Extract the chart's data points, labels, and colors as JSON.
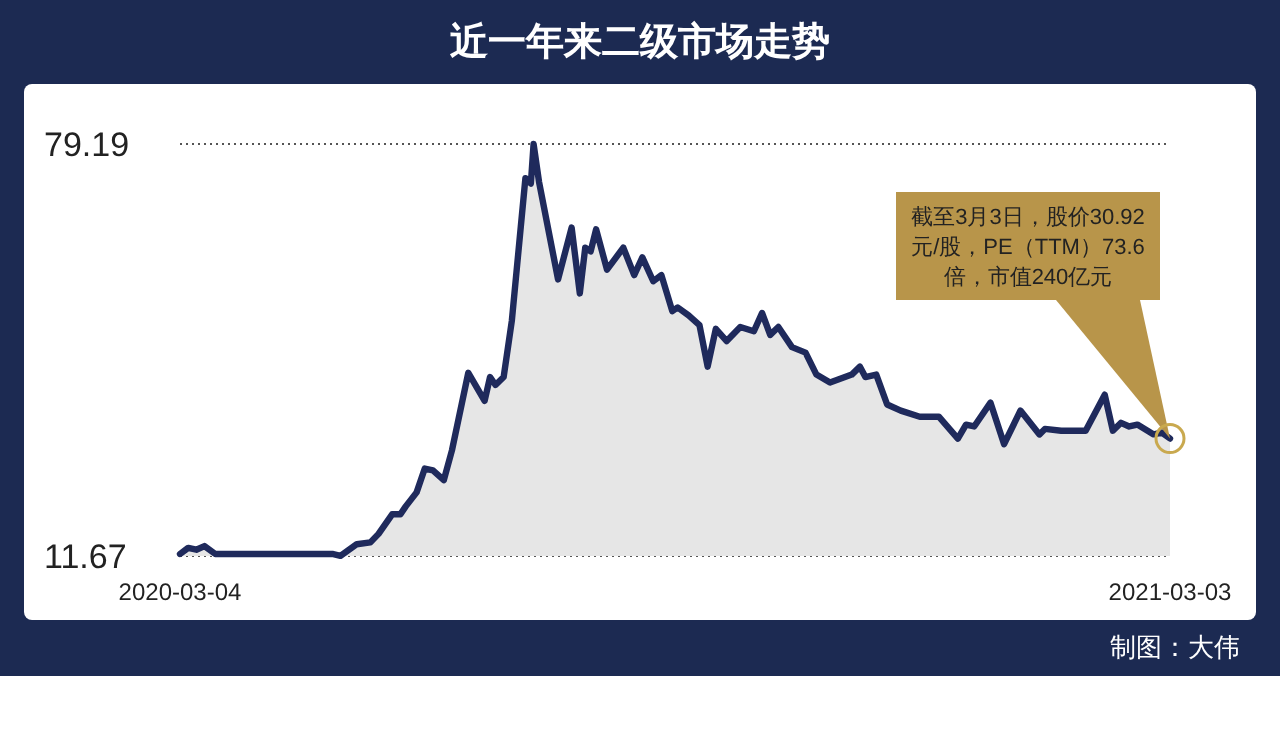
{
  "chart_data": {
    "type": "area",
    "title": "近一年来二级市场走势",
    "x": [
      "2020-03-04",
      "2020-03-07",
      "2020-03-10",
      "2020-03-13",
      "2020-03-17",
      "2020-04-29",
      "2020-05-02",
      "2020-05-08",
      "2020-05-13",
      "2020-05-16",
      "2020-05-21",
      "2020-05-24",
      "2020-05-26",
      "2020-05-30",
      "2020-06-02",
      "2020-06-05",
      "2020-06-09",
      "2020-06-12",
      "2020-06-18",
      "2020-06-21",
      "2020-06-24",
      "2020-06-26",
      "2020-06-28",
      "2020-07-01",
      "2020-07-04",
      "2020-07-09",
      "2020-07-11",
      "2020-07-12",
      "2020-07-14",
      "2020-07-21",
      "2020-07-26",
      "2020-07-29",
      "2020-07-31",
      "2020-08-02",
      "2020-08-04",
      "2020-08-08",
      "2020-08-14",
      "2020-08-18",
      "2020-08-21",
      "2020-08-25",
      "2020-08-28",
      "2020-09-01",
      "2020-09-03",
      "2020-09-07",
      "2020-09-11",
      "2020-09-14",
      "2020-09-17",
      "2020-09-21",
      "2020-09-26",
      "2020-10-01",
      "2020-10-04",
      "2020-10-07",
      "2020-10-10",
      "2020-10-15",
      "2020-10-20",
      "2020-10-24",
      "2020-10-29",
      "2020-11-06",
      "2020-11-09",
      "2020-11-11",
      "2020-11-15",
      "2020-11-19",
      "2020-11-24",
      "2020-12-01",
      "2020-12-08",
      "2020-12-15",
      "2020-12-18",
      "2020-12-21",
      "2020-12-27",
      "2021-01-01",
      "2021-01-07",
      "2021-01-14",
      "2021-01-16",
      "2021-01-22",
      "2021-01-31",
      "2021-02-07",
      "2021-02-10",
      "2021-02-13",
      "2021-02-16",
      "2021-02-19",
      "2021-02-25",
      "2021-02-28",
      "2021-03-03"
    ],
    "series": [
      {
        "color": "#1f2a5c",
        "values": [
          12.0,
          13.0,
          12.7,
          13.3,
          12.0,
          12.0,
          11.7,
          13.6,
          13.9,
          15.3,
          18.5,
          18.5,
          19.8,
          22.1,
          26.0,
          25.7,
          24.1,
          29.0,
          41.7,
          39.4,
          37.1,
          41.0,
          39.7,
          41.0,
          50.2,
          73.6,
          72.7,
          79.19,
          73.0,
          57.0,
          65.5,
          54.7,
          62.2,
          61.6,
          65.2,
          58.6,
          62.2,
          57.7,
          60.6,
          56.7,
          57.7,
          51.8,
          52.4,
          51.1,
          49.5,
          42.7,
          48.9,
          46.9,
          49.2,
          48.5,
          51.5,
          47.9,
          49.2,
          45.9,
          45.0,
          41.4,
          40.1,
          41.4,
          42.7,
          41.0,
          41.4,
          36.5,
          35.5,
          34.5,
          34.5,
          30.9,
          33.2,
          32.9,
          36.8,
          30.0,
          35.5,
          31.6,
          32.5,
          32.2,
          32.2,
          38.1,
          32.2,
          33.5,
          32.9,
          33.2,
          31.6,
          31.9,
          30.92
        ]
      }
    ],
    "xlim": [
      "2020-03-04",
      "2021-03-03"
    ],
    "xticks": [
      {
        "value": "2020-03-04",
        "label": "2020-03-04"
      },
      {
        "value": "2021-03-03",
        "label": "2021-03-03"
      }
    ],
    "ylim": [
      11.67,
      79.19
    ],
    "yticks": [
      11.67,
      79.19
    ],
    "grid": "y",
    "annotations": [
      "截至3月3日，股价30.92元/股，PE（TTM）73.6倍，市值240亿元",
      "制图：大伟"
    ]
  }
}
